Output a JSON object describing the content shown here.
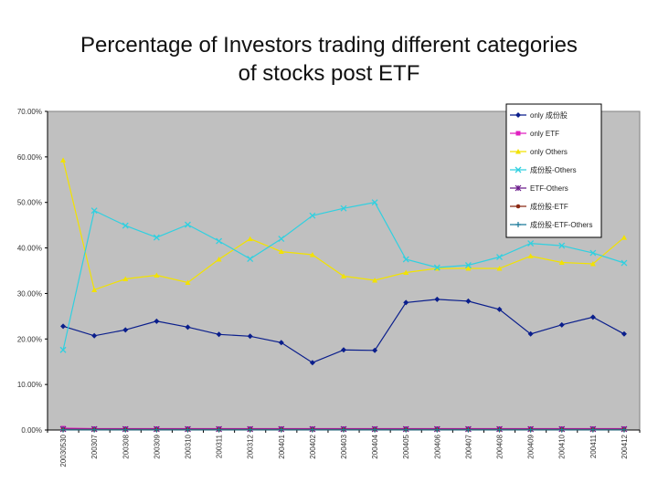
{
  "title_lines": [
    "Percentage of Investors trading different categories",
    "of stocks post ETF"
  ],
  "chart_data": {
    "type": "line",
    "title": "Percentage of Investors trading different categories of stocks post ETF",
    "categories": [
      "20030530",
      "200307",
      "200308",
      "200309",
      "200310",
      "200311",
      "200312",
      "200401",
      "200402",
      "200403",
      "200404",
      "200405",
      "200406",
      "200407",
      "200408",
      "200409",
      "200410",
      "200411",
      "200412"
    ],
    "ylim": [
      0,
      70
    ],
    "yticks": [
      "0.00%",
      "10.00%",
      "20.00%",
      "30.00%",
      "40.00%",
      "50.00%",
      "60.00%",
      "70.00%"
    ],
    "grid": false,
    "legend_position": "top-right",
    "series": [
      {
        "name": "only 成份股",
        "color": "#0a1e8c",
        "marker": "diamond",
        "values": [
          22.8,
          20.7,
          22.0,
          23.9,
          22.6,
          21.0,
          20.6,
          19.2,
          14.8,
          17.6,
          17.5,
          28.0,
          28.7,
          28.3,
          26.5,
          21.1,
          23.1,
          24.8,
          21.1
        ]
      },
      {
        "name": "only ETF",
        "color": "#e020c0",
        "marker": "square",
        "values": [
          0.4,
          0.3,
          0.3,
          0.3,
          0.3,
          0.3,
          0.3,
          0.3,
          0.3,
          0.3,
          0.3,
          0.3,
          0.3,
          0.3,
          0.3,
          0.3,
          0.3,
          0.3,
          0.3
        ]
      },
      {
        "name": "only Others",
        "color": "#f2e200",
        "marker": "triangle",
        "values": [
          59.3,
          30.8,
          33.2,
          34.0,
          32.4,
          37.5,
          42.0,
          39.2,
          38.5,
          33.8,
          32.9,
          34.6,
          35.5,
          35.5,
          35.5,
          38.2,
          36.8,
          36.5,
          42.3
        ]
      },
      {
        "name": "成份股-Others",
        "color": "#30d0e0",
        "marker": "x",
        "values": [
          17.6,
          48.2,
          44.9,
          42.3,
          45.1,
          41.5,
          37.6,
          42.0,
          47.1,
          48.7,
          50.0,
          37.5,
          35.7,
          36.2,
          38.0,
          41.0,
          40.5,
          38.9,
          36.7
        ]
      },
      {
        "name": "ETF-Others",
        "color": "#6a1a8a",
        "marker": "star",
        "values": [
          0.2,
          0.2,
          0.2,
          0.2,
          0.2,
          0.2,
          0.2,
          0.2,
          0.2,
          0.2,
          0.2,
          0.2,
          0.2,
          0.2,
          0.2,
          0.2,
          0.2,
          0.2,
          0.2
        ]
      },
      {
        "name": "成份股-ETF",
        "color": "#8b2a14",
        "marker": "circle",
        "values": [
          0.1,
          0.1,
          0.1,
          0.1,
          0.1,
          0.1,
          0.1,
          0.1,
          0.1,
          0.1,
          0.1,
          0.1,
          0.1,
          0.1,
          0.1,
          0.1,
          0.1,
          0.1,
          0.1
        ]
      },
      {
        "name": "成份股-ETF-Others",
        "color": "#1a7a9a",
        "marker": "plus",
        "values": [
          0.05,
          0.05,
          0.05,
          0.05,
          0.05,
          0.05,
          0.05,
          0.05,
          0.05,
          0.05,
          0.05,
          0.05,
          0.05,
          0.05,
          0.05,
          0.05,
          0.05,
          0.05,
          0.05
        ]
      }
    ]
  },
  "colors": {
    "plot_background": "#c0c0c0",
    "plot_border": "#808080",
    "axis": "#000000"
  }
}
